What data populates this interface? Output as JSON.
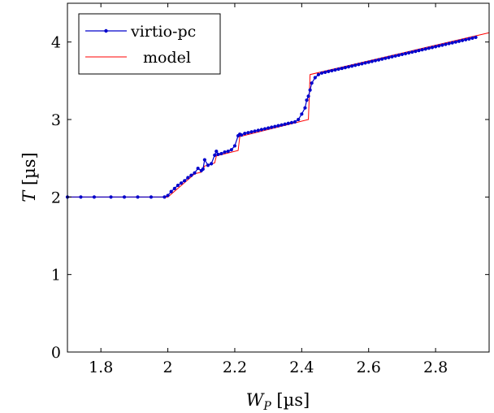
{
  "chart_data": {
    "type": "line",
    "xlabel_main": "W",
    "xlabel_sub": "P",
    "xlabel_unit": " [µs]",
    "ylabel_main": "T",
    "ylabel_unit": " [µs]",
    "xlim": [
      1.7,
      2.96
    ],
    "ylim": [
      0,
      4.5
    ],
    "xticks": [
      1.8,
      2.0,
      2.2,
      2.4,
      2.6,
      2.8
    ],
    "xtick_labels": [
      "1.8",
      "2",
      "2.2",
      "2.4",
      "2.6",
      "2.8"
    ],
    "yticks": [
      0,
      1,
      2,
      3,
      4
    ],
    "ytick_labels": [
      "0",
      "1",
      "2",
      "3",
      "4"
    ],
    "legend_position": "top-left",
    "series": [
      {
        "name": "virtio-pc",
        "color": "#0000cc",
        "marker": "dot",
        "x": [
          1.7,
          1.74,
          1.78,
          1.83,
          1.87,
          1.91,
          1.95,
          1.99,
          2.0,
          2.01,
          2.02,
          2.03,
          2.04,
          2.05,
          2.06,
          2.07,
          2.08,
          2.09,
          2.1,
          2.105,
          2.11,
          2.12,
          2.13,
          2.14,
          2.145,
          2.15,
          2.16,
          2.17,
          2.18,
          2.19,
          2.2,
          2.21,
          2.215,
          2.22,
          2.23,
          2.24,
          2.25,
          2.26,
          2.27,
          2.28,
          2.29,
          2.3,
          2.31,
          2.32,
          2.33,
          2.34,
          2.35,
          2.36,
          2.37,
          2.38,
          2.39,
          2.4,
          2.41,
          2.415,
          2.42,
          2.425,
          2.43,
          2.44,
          2.45,
          2.46,
          2.47,
          2.48,
          2.49,
          2.5,
          2.51,
          2.52,
          2.53,
          2.54,
          2.55,
          2.56,
          2.57,
          2.58,
          2.59,
          2.6,
          2.61,
          2.62,
          2.63,
          2.64,
          2.65,
          2.66,
          2.67,
          2.68,
          2.69,
          2.7,
          2.71,
          2.72,
          2.73,
          2.74,
          2.75,
          2.76,
          2.77,
          2.78,
          2.79,
          2.8,
          2.81,
          2.82,
          2.83,
          2.84,
          2.85,
          2.86,
          2.87,
          2.88,
          2.89,
          2.9,
          2.91,
          2.92
        ],
        "y": [
          2.0,
          2.0,
          2.0,
          2.0,
          2.0,
          2.0,
          2.0,
          2.0,
          2.02,
          2.07,
          2.11,
          2.15,
          2.18,
          2.21,
          2.25,
          2.28,
          2.31,
          2.37,
          2.34,
          2.36,
          2.48,
          2.41,
          2.43,
          2.54,
          2.59,
          2.55,
          2.56,
          2.58,
          2.59,
          2.61,
          2.66,
          2.79,
          2.81,
          2.8,
          2.82,
          2.83,
          2.84,
          2.85,
          2.86,
          2.87,
          2.88,
          2.89,
          2.9,
          2.91,
          2.92,
          2.93,
          2.94,
          2.95,
          2.96,
          2.97,
          3.0,
          3.07,
          3.15,
          3.25,
          3.3,
          3.38,
          3.47,
          3.54,
          3.58,
          3.6,
          3.61,
          3.62,
          3.63,
          3.64,
          3.65,
          3.66,
          3.67,
          3.68,
          3.69,
          3.7,
          3.71,
          3.72,
          3.73,
          3.74,
          3.75,
          3.76,
          3.77,
          3.78,
          3.79,
          3.8,
          3.81,
          3.82,
          3.83,
          3.84,
          3.85,
          3.86,
          3.87,
          3.88,
          3.89,
          3.9,
          3.91,
          3.92,
          3.93,
          3.94,
          3.95,
          3.96,
          3.97,
          3.98,
          3.99,
          4.0,
          4.01,
          4.02,
          4.03,
          4.04,
          4.05,
          4.06
        ]
      },
      {
        "name": "model",
        "color": "#ff0000",
        "marker": "none",
        "x": [
          1.7,
          2.0,
          2.07,
          2.08,
          2.09,
          2.1,
          2.11,
          2.12,
          2.14,
          2.145,
          2.21,
          2.215,
          2.42,
          2.425,
          2.96
        ],
        "y": [
          2.0,
          2.0,
          2.26,
          2.3,
          2.31,
          2.32,
          2.4,
          2.41,
          2.44,
          2.53,
          2.6,
          2.78,
          3.0,
          3.58,
          4.12
        ]
      }
    ]
  }
}
